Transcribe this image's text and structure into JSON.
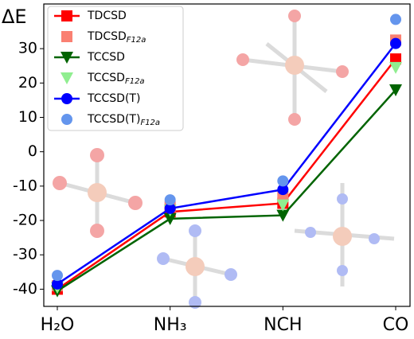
{
  "chart_data": {
    "type": "line",
    "y_label": "ΔE",
    "categories": [
      "H₂O",
      "NH₃",
      "NCH",
      "CO"
    ],
    "ylim": [
      -45,
      43
    ],
    "yticks": [
      -40,
      -30,
      -20,
      -10,
      0,
      10,
      20,
      30
    ],
    "legend": "upper left",
    "series": [
      {
        "name": "TDCSD",
        "color": "#ff0000",
        "marker": "square",
        "line": true,
        "values": [
          -40,
          -17.5,
          -15,
          27
        ]
      },
      {
        "name": "TDCSD",
        "subscript": "F12a",
        "color": "#fa8072",
        "marker": "square",
        "line": false,
        "values": [
          -39,
          -16,
          -13,
          32.5
        ]
      },
      {
        "name": "TCCSD",
        "color": "#006400",
        "marker": "triangle",
        "line": true,
        "values": [
          -40.5,
          -19.5,
          -18.5,
          18
        ]
      },
      {
        "name": "TCCSD",
        "subscript": "F12a",
        "color": "#90ee90",
        "marker": "triangle",
        "line": false,
        "values": [
          -39.5,
          -17,
          -15.5,
          24.5
        ]
      },
      {
        "name": "TCCSD(T)",
        "color": "#0000ff",
        "marker": "circle",
        "line": true,
        "values": [
          -38.5,
          -16.5,
          -11,
          31.5
        ]
      },
      {
        "name": "TCCSD(T)",
        "subscript": "F12a",
        "color": "#6495ed",
        "marker": "circle",
        "line": false,
        "values": [
          -36,
          -14,
          -8.5,
          38.5
        ]
      }
    ]
  }
}
